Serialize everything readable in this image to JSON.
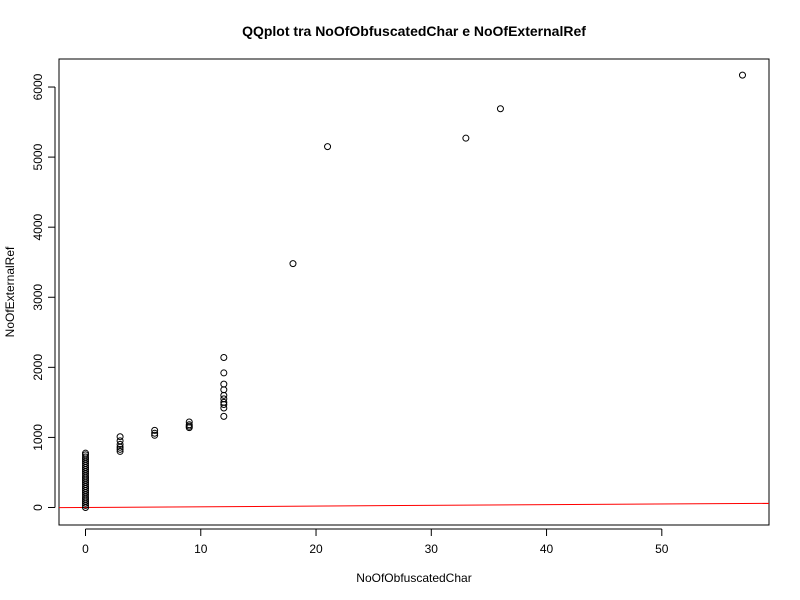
{
  "chart_data": {
    "type": "scatter",
    "title": "QQplot tra NoOfObfuscatedChar e NoOfExternalRef",
    "xlabel": "NoOfObfuscatedChar",
    "ylabel": "NoOfExternalRef",
    "xlim": [
      -2.3,
      59.3
    ],
    "ylim": [
      -250,
      6400
    ],
    "x_ticks": [
      0,
      10,
      20,
      30,
      40,
      50
    ],
    "y_ticks": [
      0,
      1000,
      2000,
      3000,
      4000,
      5000,
      6000
    ],
    "grid": false,
    "series": [
      {
        "marker": "open-circle",
        "color": "#000000",
        "points": [
          [
            0,
            0
          ],
          [
            0,
            30
          ],
          [
            0,
            60
          ],
          [
            0,
            90
          ],
          [
            0,
            120
          ],
          [
            0,
            150
          ],
          [
            0,
            180
          ],
          [
            0,
            210
          ],
          [
            0,
            240
          ],
          [
            0,
            270
          ],
          [
            0,
            300
          ],
          [
            0,
            330
          ],
          [
            0,
            360
          ],
          [
            0,
            390
          ],
          [
            0,
            420
          ],
          [
            0,
            450
          ],
          [
            0,
            480
          ],
          [
            0,
            510
          ],
          [
            0,
            540
          ],
          [
            0,
            570
          ],
          [
            0,
            600
          ],
          [
            0,
            630
          ],
          [
            0,
            660
          ],
          [
            0,
            690
          ],
          [
            0,
            720
          ],
          [
            0,
            750
          ],
          [
            0,
            775
          ],
          [
            3,
            800
          ],
          [
            3,
            830
          ],
          [
            3,
            860
          ],
          [
            3,
            900
          ],
          [
            3,
            950
          ],
          [
            3,
            1010
          ],
          [
            6,
            1030
          ],
          [
            6,
            1060
          ],
          [
            6,
            1100
          ],
          [
            9,
            1140
          ],
          [
            9,
            1160
          ],
          [
            9,
            1180
          ],
          [
            9,
            1220
          ],
          [
            12,
            1300
          ],
          [
            12,
            1420
          ],
          [
            12,
            1470
          ],
          [
            12,
            1500
          ],
          [
            12,
            1550
          ],
          [
            12,
            1600
          ],
          [
            12,
            1680
          ],
          [
            12,
            1760
          ],
          [
            12,
            1920
          ],
          [
            12,
            2140
          ],
          [
            18,
            3480
          ],
          [
            21,
            5150
          ],
          [
            33,
            5270
          ],
          [
            36,
            5690
          ],
          [
            57,
            6170
          ]
        ]
      }
    ],
    "reference_line": {
      "color": "#ff0000",
      "from": [
        -2.3,
        -2.3
      ],
      "to": [
        59.3,
        59.3
      ]
    }
  }
}
